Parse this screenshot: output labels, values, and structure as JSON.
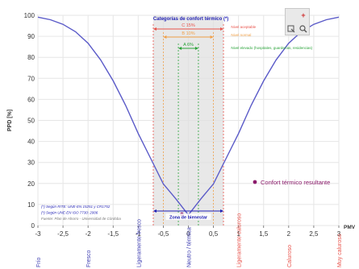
{
  "chart_data": {
    "type": "line",
    "ylabel": "PPD [%]",
    "xlabel": "PMV",
    "xlim": [
      -3,
      3
    ],
    "ylim": [
      0,
      100
    ],
    "x_ticks": [
      "-3",
      "-2,5",
      "-2",
      "-1,5",
      "-1",
      "-0,5",
      "0",
      "0,5",
      "1",
      "1,5",
      "2",
      "2,5",
      "3"
    ],
    "y_ticks": [
      "0",
      "10",
      "20",
      "30",
      "40",
      "50",
      "60",
      "70",
      "80",
      "90",
      "100"
    ],
    "grid": true,
    "series": [
      {
        "x": [
          -3,
          -2.75,
          -2.5,
          -2.25,
          -2,
          -1.75,
          -1.5,
          -1.25,
          -1,
          -0.75,
          -0.5,
          -0.25,
          0,
          0.25,
          0.5,
          0.75,
          1,
          1.25,
          1.5,
          1.75,
          2,
          2.25,
          2.5,
          2.75,
          3
        ],
        "y": [
          99.1,
          97.9,
          95.7,
          92.2,
          86.7,
          78.8,
          68.8,
          57.1,
          43.8,
          31.8,
          19.8,
          12.7,
          5.0,
          12.7,
          19.8,
          31.8,
          43.8,
          57.1,
          68.8,
          78.8,
          86.7,
          92.2,
          95.7,
          97.9,
          99.1
        ]
      }
    ],
    "marker": {
      "pmv": -0.13,
      "ppd": 5.4
    },
    "categories_title": "Categorías de confort térmico (*)",
    "bands": [
      {
        "label": "C 15%",
        "from": -0.7,
        "to": 0.7,
        "color": "#e8524a"
      },
      {
        "label": "B 10%",
        "from": -0.5,
        "to": 0.5,
        "color": "#f0a048"
      },
      {
        "label": "A 6%",
        "from": -0.2,
        "to": 0.2,
        "color": "#2aa33a"
      }
    ],
    "band_notes": [
      "Nivel aceptable",
      "Nivel normal",
      "Nivel elevado (hospitales, guarderías, residencias)"
    ],
    "zona_label": "Zona de bienestar",
    "legend_label": "Confort térmico resultante",
    "footnotes": [
      "(*) Según RITE: UNE-EN 15251 y CR1752",
      "(*) Según UNE-EN ISO 7730: 2006",
      "Fuente: Plan de Ahorro - Universidad de Córdoba"
    ],
    "sensations": [
      {
        "label": "Frío",
        "x": -3,
        "color": "#3b3bb0"
      },
      {
        "label": "Fresco",
        "x": -2,
        "color": "#3b3bb0"
      },
      {
        "label": "Ligeramente fresco",
        "x": -1,
        "color": "#3b3bb0"
      },
      {
        "label": "Neutro / térmica",
        "x": 0,
        "color": "#3b3bb0"
      },
      {
        "label": "Ligeramente caluroso",
        "x": 1,
        "color": "#e8524a"
      },
      {
        "label": "Caluroso",
        "x": 2,
        "color": "#e8524a"
      },
      {
        "label": "Muy caluroso",
        "x": 3,
        "color": "#e8524a"
      }
    ]
  },
  "colors": {
    "curve": "#5a5ac8",
    "zone": "#e0e0e0",
    "title": "#1e1eb4",
    "marker": "#8b1a6b"
  },
  "toolbar": {
    "icons": [
      "blank-icon",
      "plus-icon",
      "select-icon",
      "zoom-icon"
    ]
  }
}
